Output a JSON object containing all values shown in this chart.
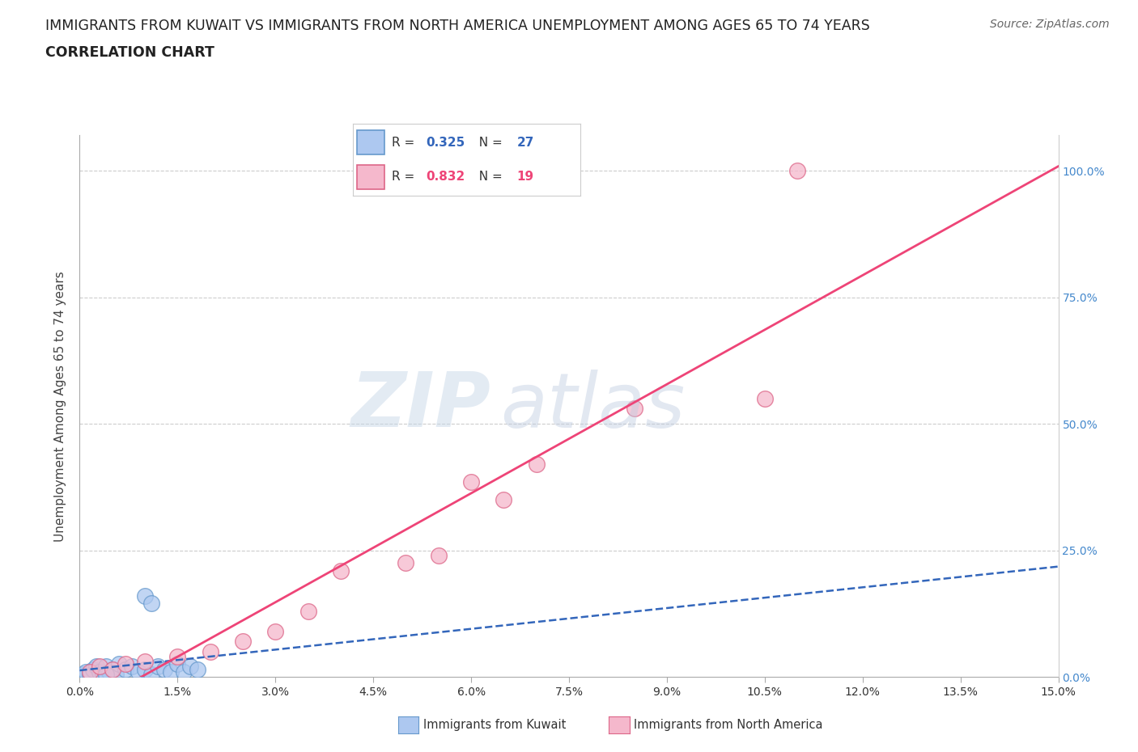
{
  "title_line1": "IMMIGRANTS FROM KUWAIT VS IMMIGRANTS FROM NORTH AMERICA UNEMPLOYMENT AMONG AGES 65 TO 74 YEARS",
  "title_line2": "CORRELATION CHART",
  "source": "Source: ZipAtlas.com",
  "ylabel": "Unemployment Among Ages 65 to 74 years",
  "x_tick_labels": [
    "0.0%",
    "1.5%",
    "3.0%",
    "4.5%",
    "6.0%",
    "7.5%",
    "9.0%",
    "10.5%",
    "12.0%",
    "13.5%",
    "15.0%"
  ],
  "x_tick_values": [
    0.0,
    1.5,
    3.0,
    4.5,
    6.0,
    7.5,
    9.0,
    10.5,
    12.0,
    13.5,
    15.0
  ],
  "y_tick_labels": [
    "0.0%",
    "25.0%",
    "50.0%",
    "75.0%",
    "100.0%"
  ],
  "y_tick_values": [
    0,
    25,
    50,
    75,
    100
  ],
  "xlim": [
    0,
    15
  ],
  "ylim": [
    0,
    107
  ],
  "kuwait_color": "#adc8f0",
  "kuwait_edge_color": "#6699cc",
  "na_color": "#f5b8cc",
  "na_edge_color": "#dd6688",
  "kuwait_R": 0.325,
  "kuwait_N": 27,
  "na_R": 0.832,
  "na_N": 19,
  "kuwait_trend_color": "#3366bb",
  "na_trend_color": "#ee4477",
  "legend_label_kuwait": "Immigrants from Kuwait",
  "legend_label_na": "Immigrants from North America",
  "kuwait_x": [
    0.05,
    0.1,
    0.15,
    0.2,
    0.25,
    0.3,
    0.35,
    0.4,
    0.45,
    0.5,
    0.55,
    0.6,
    0.7,
    0.8,
    0.9,
    1.0,
    1.1,
    1.2,
    1.3,
    1.4,
    1.5,
    1.6,
    1.7,
    1.8,
    1.0,
    1.1,
    0.4
  ],
  "kuwait_y": [
    0.5,
    1.0,
    0.5,
    1.5,
    2.0,
    1.0,
    0.5,
    2.0,
    1.0,
    1.5,
    0.5,
    2.5,
    1.5,
    2.0,
    1.0,
    1.5,
    0.5,
    2.0,
    1.5,
    1.0,
    2.5,
    1.0,
    2.0,
    1.5,
    16.0,
    14.5,
    0.5
  ],
  "na_x": [
    0.15,
    0.3,
    0.5,
    0.7,
    1.0,
    1.5,
    2.0,
    2.5,
    3.0,
    3.5,
    4.0,
    5.0,
    5.5,
    6.0,
    6.5,
    7.0,
    8.5,
    10.5,
    11.0
  ],
  "na_y": [
    1.0,
    2.0,
    1.5,
    2.5,
    3.0,
    4.0,
    5.0,
    7.0,
    9.0,
    13.0,
    21.0,
    22.5,
    24.0,
    38.5,
    35.0,
    42.0,
    53.0,
    55.0,
    100.0
  ],
  "background_color": "#ffffff",
  "grid_color": "#cccccc",
  "title_fontsize": 12.5,
  "axis_label_fontsize": 11,
  "tick_fontsize": 10,
  "legend_fontsize": 11,
  "source_fontsize": 10,
  "watermark_zip_color": "#c8d8e8",
  "watermark_atlas_color": "#c0cce0"
}
